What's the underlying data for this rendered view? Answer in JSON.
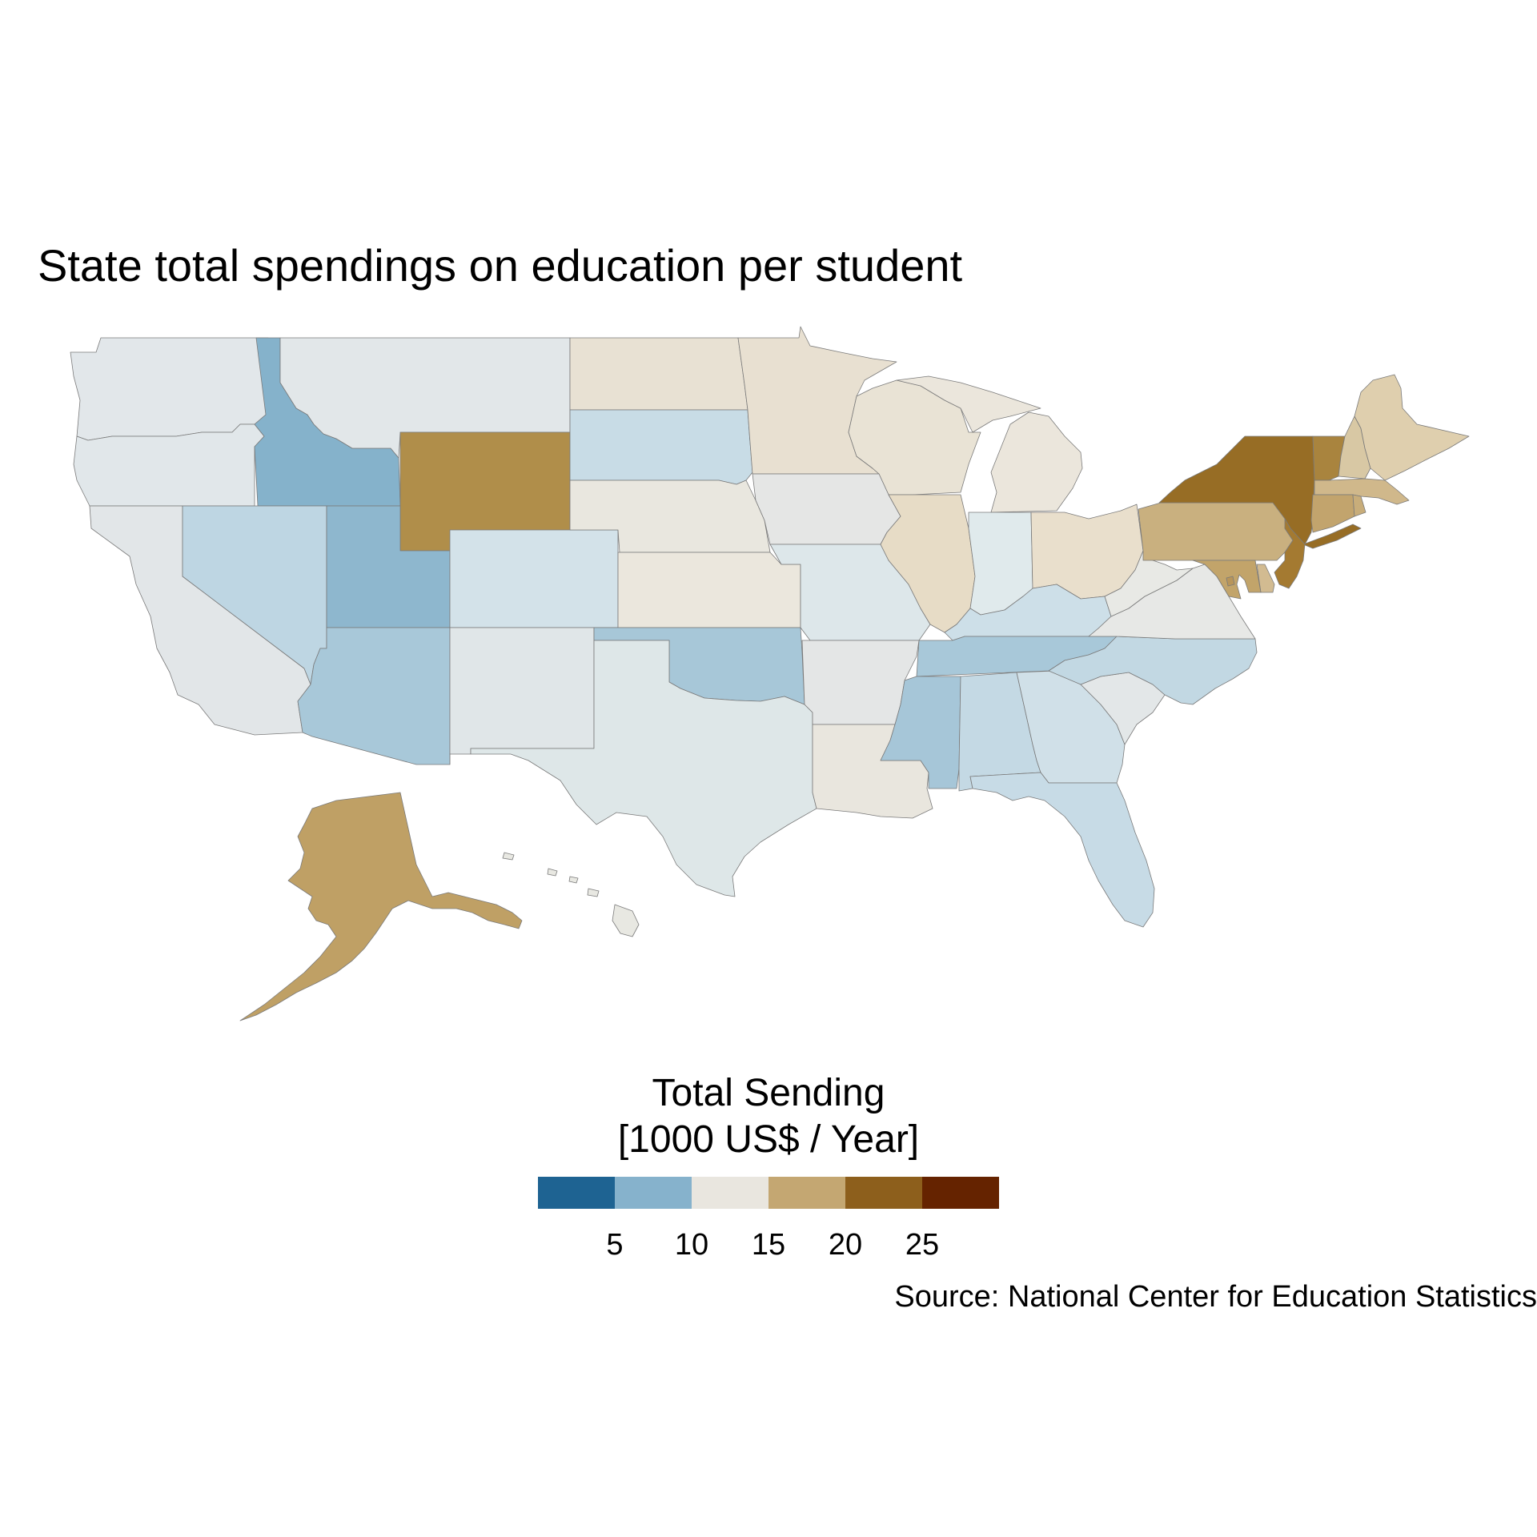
{
  "title": "State total spendings on education per student",
  "legend": {
    "title_line1": "Total Sending",
    "title_line2": "[1000 US$ / Year]",
    "bins": [
      {
        "color": "#1e6392"
      },
      {
        "color": "#86b2cc"
      },
      {
        "color": "#e9e6df"
      },
      {
        "color": "#c4a772"
      },
      {
        "color": "#8d5f1c"
      },
      {
        "color": "#652300"
      }
    ],
    "ticks": [
      {
        "label": "5",
        "value": 5
      },
      {
        "label": "10",
        "value": 10
      },
      {
        "label": "15",
        "value": 15
      },
      {
        "label": "20",
        "value": 20
      },
      {
        "label": "25",
        "value": 25
      }
    ],
    "range": [
      0,
      30
    ]
  },
  "caption": "Source: National Center for Education Statistics",
  "map_data": {
    "value_units": "1000 US$ / Year",
    "states": [
      {
        "id": "WA",
        "value": 13.0,
        "color": "#e2e7ea"
      },
      {
        "id": "OR",
        "value": 13.0,
        "color": "#e1e7ea"
      },
      {
        "id": "CA",
        "value": 13.1,
        "color": "#e2e6e8"
      },
      {
        "id": "ID",
        "value": 8.9,
        "color": "#85b2cb"
      },
      {
        "id": "NV",
        "value": 11.0,
        "color": "#bed6e3"
      },
      {
        "id": "MT",
        "value": 13.2,
        "color": "#e2e7e9"
      },
      {
        "id": "WY",
        "value": 21.0,
        "color": "#b08e4a"
      },
      {
        "id": "UT",
        "value": 9.0,
        "color": "#8eb7ce"
      },
      {
        "id": "AZ",
        "value": 10.0,
        "color": "#a8c8d9"
      },
      {
        "id": "CO",
        "value": 12.5,
        "color": "#d3e2e9"
      },
      {
        "id": "NM",
        "value": 13.0,
        "color": "#e0e6e8"
      },
      {
        "id": "ND",
        "value": 15.7,
        "color": "#e8e1d3"
      },
      {
        "id": "SD",
        "value": 11.5,
        "color": "#c8dce6"
      },
      {
        "id": "NE",
        "value": 14.6,
        "color": "#e9e7df"
      },
      {
        "id": "KS",
        "value": 14.8,
        "color": "#ebe7dd"
      },
      {
        "id": "OK",
        "value": 10.2,
        "color": "#a7c7d8"
      },
      {
        "id": "TX",
        "value": 12.9,
        "color": "#dee7e8"
      },
      {
        "id": "MN",
        "value": 15.8,
        "color": "#e8e0d1"
      },
      {
        "id": "IA",
        "value": 14.0,
        "color": "#e5e6e5"
      },
      {
        "id": "MO",
        "value": 12.8,
        "color": "#dde7ea"
      },
      {
        "id": "AR",
        "value": 13.8,
        "color": "#e4e6e6"
      },
      {
        "id": "LA",
        "value": 14.8,
        "color": "#e9e6de"
      },
      {
        "id": "WI",
        "value": 15.5,
        "color": "#e9e3d5"
      },
      {
        "id": "IL",
        "value": 16.5,
        "color": "#e7dcc6"
      },
      {
        "id": "MI",
        "value": 15.0,
        "color": "#ebe6dc"
      },
      {
        "id": "IN",
        "value": 13.0,
        "color": "#e0eaec"
      },
      {
        "id": "OH",
        "value": 16.0,
        "color": "#e9dfcc"
      },
      {
        "id": "KY",
        "value": 11.8,
        "color": "#cddfe8"
      },
      {
        "id": "TN",
        "value": 10.5,
        "color": "#a8c8d9"
      },
      {
        "id": "MS",
        "value": 10.0,
        "color": "#a6c6d8"
      },
      {
        "id": "AL",
        "value": 11.2,
        "color": "#c4d9e4"
      },
      {
        "id": "GA",
        "value": 12.0,
        "color": "#d0e0e8"
      },
      {
        "id": "FL",
        "value": 11.3,
        "color": "#c7dbe6"
      },
      {
        "id": "SC",
        "value": 13.5,
        "color": "#e3e7e8"
      },
      {
        "id": "NC",
        "value": 11.3,
        "color": "#c2d8e3"
      },
      {
        "id": "VA",
        "value": 14.0,
        "color": "#e7e8e6"
      },
      {
        "id": "WV",
        "value": 14.0,
        "color": "#e8e9e5"
      },
      {
        "id": "PA",
        "value": 19.5,
        "color": "#c9b07f"
      },
      {
        "id": "NY",
        "value": 26.5,
        "color": "#976d25"
      },
      {
        "id": "VT",
        "value": 22.5,
        "color": "#a9843e"
      },
      {
        "id": "NH",
        "value": 18.0,
        "color": "#d8c8a4"
      },
      {
        "id": "ME",
        "value": 17.0,
        "color": "#dfcfae"
      },
      {
        "id": "MA",
        "value": 19.0,
        "color": "#d0b88b"
      },
      {
        "id": "CT",
        "value": 21.0,
        "color": "#c2a46d"
      },
      {
        "id": "RI",
        "value": 19.5,
        "color": "#c8ad7a"
      },
      {
        "id": "NJ",
        "value": 23.0,
        "color": "#a47a31"
      },
      {
        "id": "DE",
        "value": 18.0,
        "color": "#d2bb91"
      },
      {
        "id": "MD",
        "value": 19.0,
        "color": "#c2a46a"
      },
      {
        "id": "DC",
        "value": 21.0,
        "color": "#b8955a"
      },
      {
        "id": "AK",
        "value": 20.0,
        "color": "#bfa065"
      },
      {
        "id": "HI",
        "value": 15.0,
        "color": "#e8e8e2"
      }
    ]
  }
}
